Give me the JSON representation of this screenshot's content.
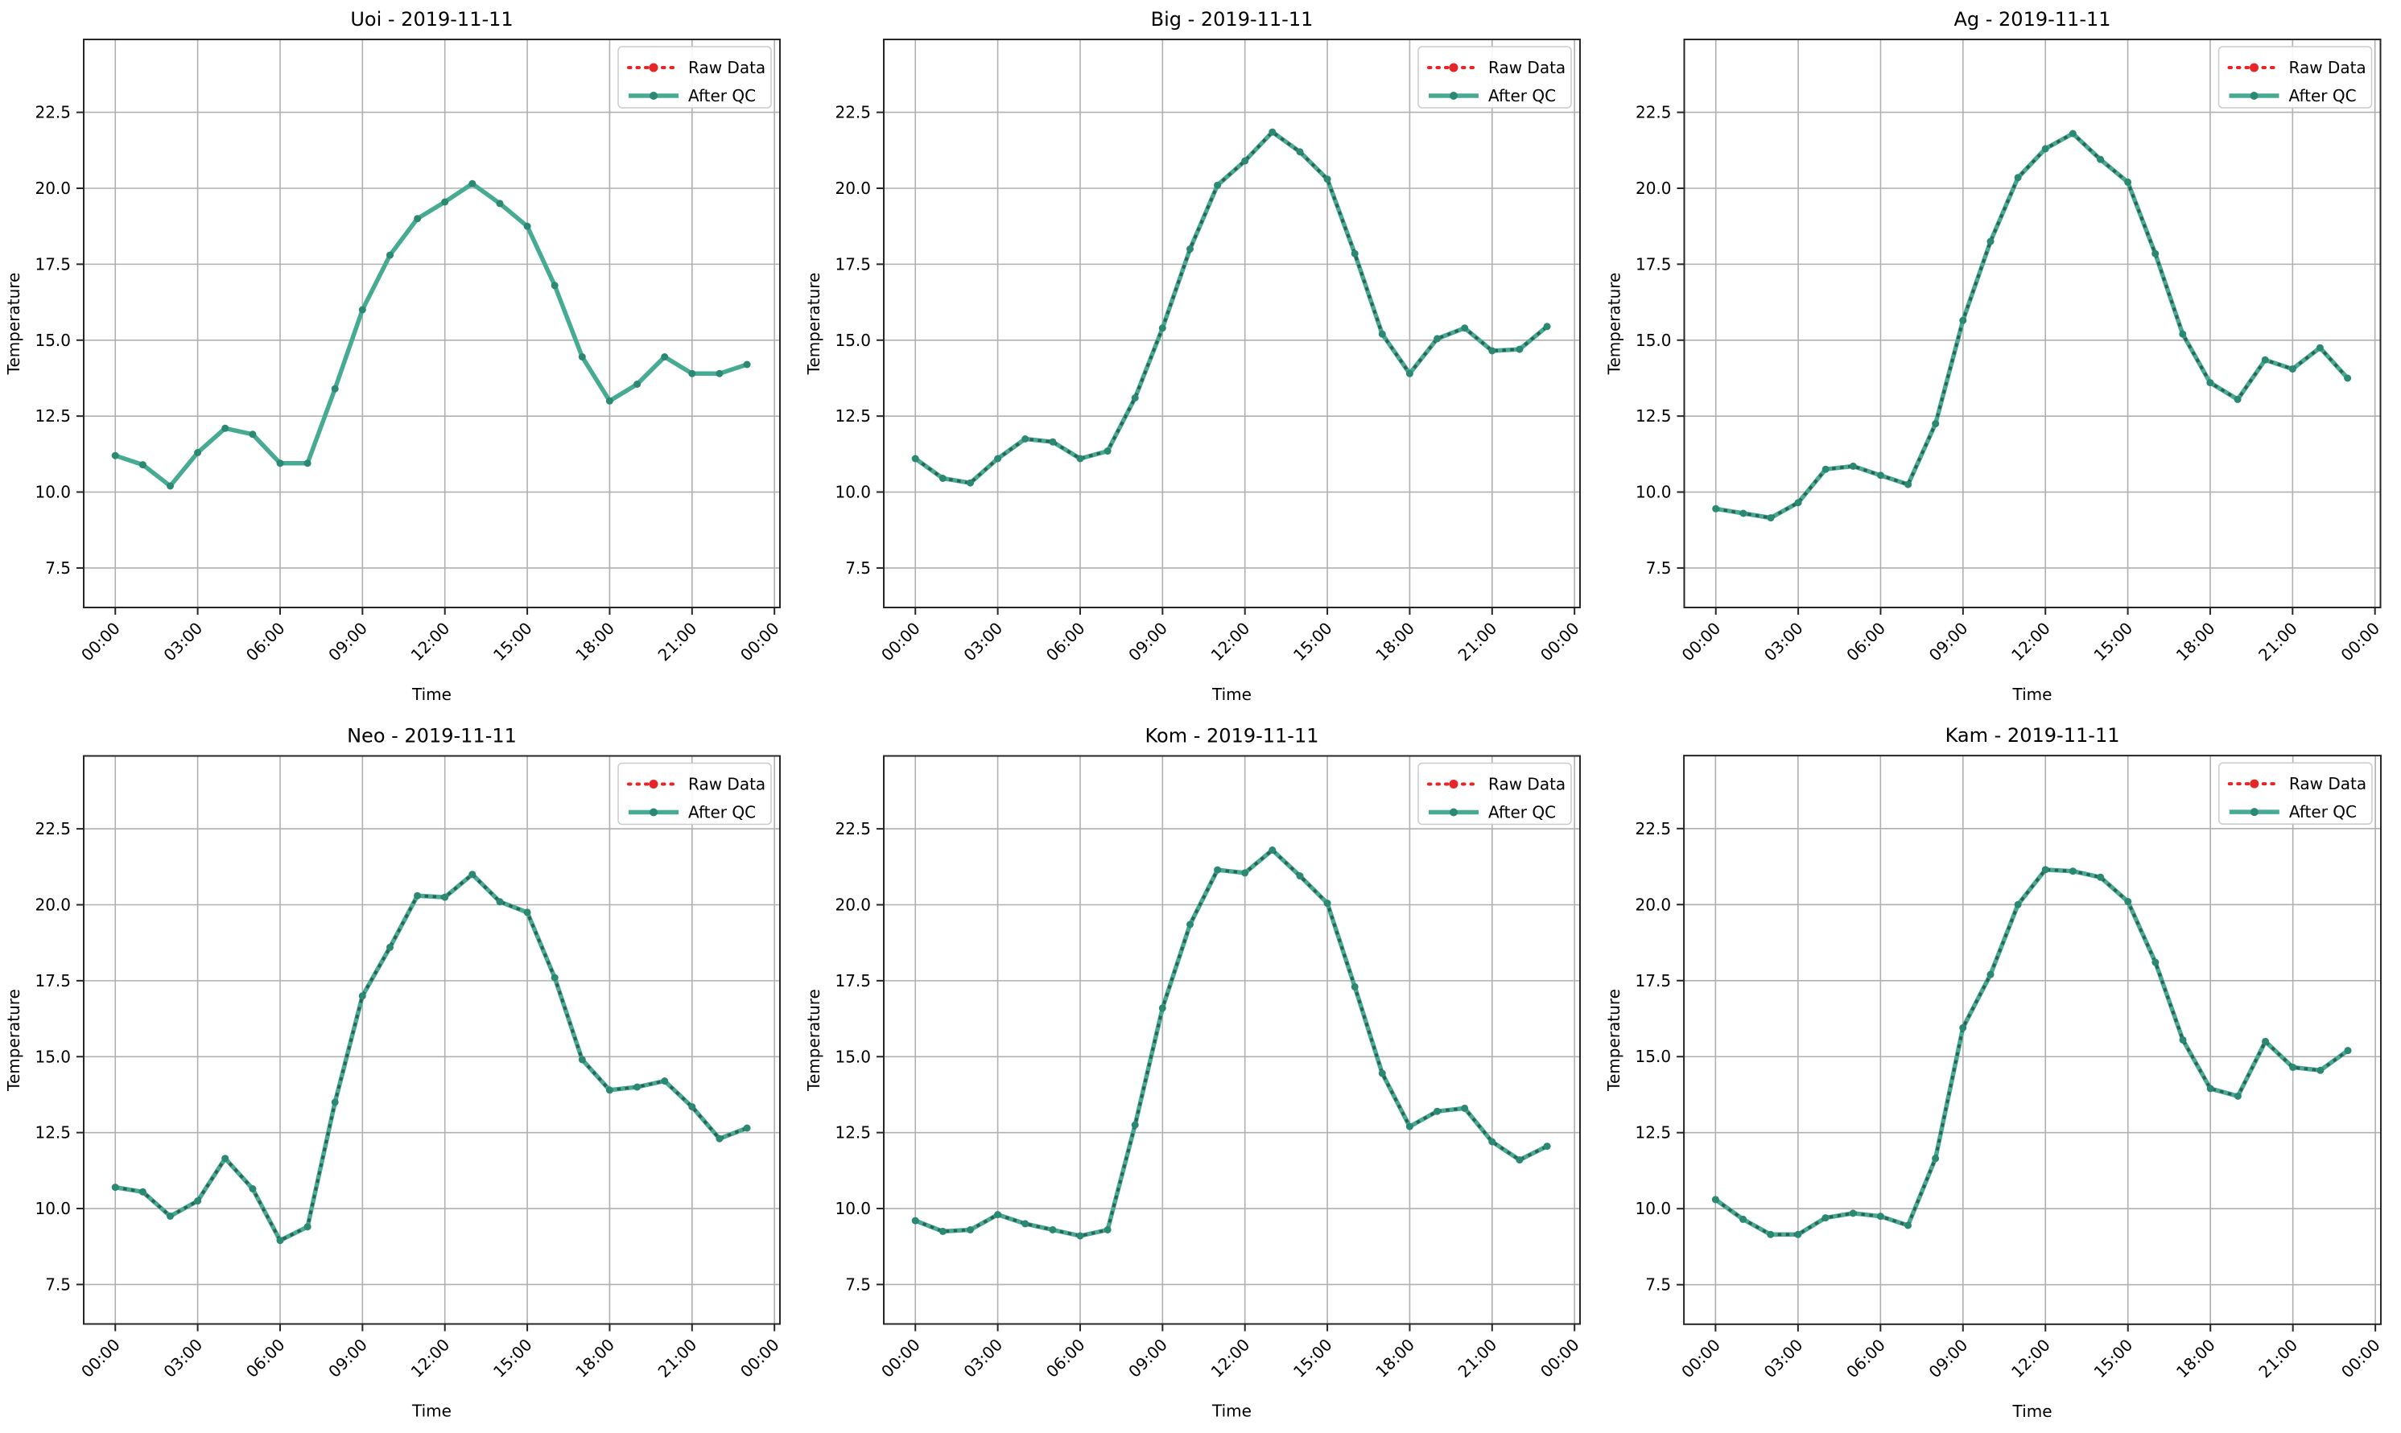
{
  "figure": {
    "background": "#ffffff",
    "grid": true,
    "legend_position": "upper right",
    "ylabel": "Temperature",
    "xlabel": "Time",
    "legend": {
      "raw_label": "Raw Data",
      "qc_label": "After QC"
    },
    "yticks": {
      "labels": [
        "7.5",
        "10.0",
        "12.5",
        "15.0",
        "17.5",
        "20.0",
        "22.5"
      ],
      "values": [
        7.5,
        10.0,
        12.5,
        15.0,
        17.5,
        20.0,
        22.5
      ]
    },
    "xticks": {
      "labels": [
        "00:00",
        "03:00",
        "06:00",
        "09:00",
        "12:00",
        "15:00",
        "18:00",
        "21:00",
        "00:00"
      ],
      "hours": [
        0,
        3,
        6,
        9,
        12,
        15,
        18,
        21,
        24
      ]
    },
    "ylim": [
      6.2,
      24.9
    ],
    "xlim_hours": [
      -1.15,
      24.2
    ],
    "hours": [
      "00:00",
      "01:00",
      "02:00",
      "03:00",
      "04:00",
      "05:00",
      "06:00",
      "07:00",
      "08:00",
      "09:00",
      "10:00",
      "11:00",
      "12:00",
      "13:00",
      "14:00",
      "15:00",
      "16:00",
      "17:00",
      "18:00",
      "19:00",
      "20:00",
      "21:00",
      "22:00",
      "23:00"
    ],
    "colors": {
      "qc_line": "#47ab94",
      "qc_marker": "#2b8873",
      "qc_dash_overlay": "#2e6257",
      "raw": "#e82427",
      "grid": "#b0b0b0",
      "spine": "#262626",
      "legend_border": "#cccccc",
      "text": "#000000"
    }
  },
  "chart_data": [
    {
      "type": "line",
      "station": "Uoi",
      "date": "2019-11-11",
      "title": "Uoi - 2019-11-11",
      "xlabel": "Time",
      "ylabel": "Temperature",
      "raw_dotted_visible": false,
      "series": [
        {
          "name": "Raw Data",
          "values": [
            11.2,
            10.9,
            10.2,
            11.3,
            12.1,
            11.9,
            10.95,
            10.95,
            13.4,
            16.0,
            17.8,
            19.0,
            19.55,
            20.15,
            19.5,
            18.75,
            16.8,
            14.45,
            13.0,
            13.55,
            14.45,
            13.9,
            13.9,
            14.2
          ]
        },
        {
          "name": "After QC",
          "values": [
            11.2,
            10.9,
            10.2,
            11.3,
            12.1,
            11.9,
            10.95,
            10.95,
            13.4,
            16.0,
            17.8,
            19.0,
            19.55,
            20.15,
            19.5,
            18.75,
            16.8,
            14.45,
            13.0,
            13.55,
            14.45,
            13.9,
            13.9,
            14.2
          ]
        }
      ]
    },
    {
      "type": "line",
      "station": "Big",
      "date": "2019-11-11",
      "title": "Big - 2019-11-11",
      "xlabel": "Time",
      "ylabel": "Temperature",
      "raw_dotted_visible": true,
      "series": [
        {
          "name": "Raw Data",
          "values": [
            11.1,
            10.45,
            10.3,
            11.1,
            11.75,
            11.65,
            11.1,
            11.35,
            13.1,
            15.4,
            18.0,
            20.1,
            20.9,
            21.85,
            21.2,
            20.3,
            17.85,
            15.2,
            13.9,
            15.05,
            15.4,
            14.65,
            14.7,
            15.45
          ]
        },
        {
          "name": "After QC",
          "values": [
            11.1,
            10.45,
            10.3,
            11.1,
            11.75,
            11.65,
            11.1,
            11.35,
            13.1,
            15.4,
            18.0,
            20.1,
            20.9,
            21.85,
            21.2,
            20.3,
            17.85,
            15.2,
            13.9,
            15.05,
            15.4,
            14.65,
            14.7,
            15.45
          ]
        }
      ]
    },
    {
      "type": "line",
      "station": "Ag",
      "date": "2019-11-11",
      "title": "Ag - 2019-11-11",
      "xlabel": "Time",
      "ylabel": "Temperature",
      "raw_dotted_visible": true,
      "series": [
        {
          "name": "Raw Data",
          "values": [
            9.45,
            9.3,
            9.15,
            9.65,
            10.75,
            10.85,
            10.55,
            10.25,
            12.25,
            15.65,
            18.25,
            20.35,
            21.3,
            21.8,
            20.95,
            20.2,
            17.85,
            15.2,
            13.6,
            13.05,
            14.35,
            14.05,
            14.75,
            13.75
          ]
        },
        {
          "name": "After QC",
          "values": [
            9.45,
            9.3,
            9.15,
            9.65,
            10.75,
            10.85,
            10.55,
            10.25,
            12.25,
            15.65,
            18.25,
            20.35,
            21.3,
            21.8,
            20.95,
            20.2,
            17.85,
            15.2,
            13.6,
            13.05,
            14.35,
            14.05,
            14.75,
            13.75
          ]
        }
      ]
    },
    {
      "type": "line",
      "station": "Neo",
      "date": "2019-11-11",
      "title": "Neo - 2019-11-11",
      "xlabel": "Time",
      "ylabel": "Temperature",
      "raw_dotted_visible": true,
      "series": [
        {
          "name": "Raw Data",
          "values": [
            10.7,
            10.55,
            9.75,
            10.25,
            11.65,
            10.65,
            8.95,
            9.4,
            13.5,
            17.0,
            18.6,
            20.3,
            20.25,
            21.0,
            20.1,
            19.75,
            17.6,
            14.9,
            13.9,
            14.0,
            14.2,
            13.35,
            12.3,
            12.65
          ]
        },
        {
          "name": "After QC",
          "values": [
            10.7,
            10.55,
            9.75,
            10.25,
            11.65,
            10.65,
            8.95,
            9.4,
            13.5,
            17.0,
            18.6,
            20.3,
            20.25,
            21.0,
            20.1,
            19.75,
            17.6,
            14.9,
            13.9,
            14.0,
            14.2,
            13.35,
            12.3,
            12.65
          ]
        }
      ]
    },
    {
      "type": "line",
      "station": "Kom",
      "date": "2019-11-11",
      "title": "Kom - 2019-11-11",
      "xlabel": "Time",
      "ylabel": "Temperature",
      "raw_dotted_visible": true,
      "series": [
        {
          "name": "Raw Data",
          "values": [
            9.6,
            9.25,
            9.3,
            9.8,
            9.5,
            9.3,
            9.1,
            9.3,
            12.75,
            16.6,
            19.35,
            21.15,
            21.05,
            21.8,
            20.95,
            20.05,
            17.3,
            14.45,
            12.7,
            13.2,
            13.3,
            12.2,
            11.6,
            12.05
          ]
        },
        {
          "name": "After QC",
          "values": [
            9.6,
            9.25,
            9.3,
            9.8,
            9.5,
            9.3,
            9.1,
            9.3,
            12.75,
            16.6,
            19.35,
            21.15,
            21.05,
            21.8,
            20.95,
            20.05,
            17.3,
            14.45,
            12.7,
            13.2,
            13.3,
            12.2,
            11.6,
            12.05
          ]
        }
      ]
    },
    {
      "type": "line",
      "station": "Kam",
      "date": "2019-11-11",
      "title": "Kam - 2019-11-11",
      "xlabel": "Time",
      "ylabel": "Temperature",
      "raw_dotted_visible": true,
      "series": [
        {
          "name": "Raw Data",
          "values": [
            10.3,
            9.65,
            9.15,
            9.15,
            9.7,
            9.85,
            9.75,
            9.45,
            11.65,
            15.95,
            17.7,
            20.0,
            21.15,
            21.1,
            20.9,
            20.1,
            18.1,
            15.55,
            13.95,
            13.7,
            15.5,
            14.65,
            14.55,
            15.2
          ]
        },
        {
          "name": "After QC",
          "values": [
            10.3,
            9.65,
            9.15,
            9.15,
            9.7,
            9.85,
            9.75,
            9.45,
            11.65,
            15.95,
            17.7,
            20.0,
            21.15,
            21.1,
            20.9,
            20.1,
            18.1,
            15.55,
            13.95,
            13.7,
            15.5,
            14.65,
            14.55,
            15.2
          ]
        }
      ]
    }
  ]
}
